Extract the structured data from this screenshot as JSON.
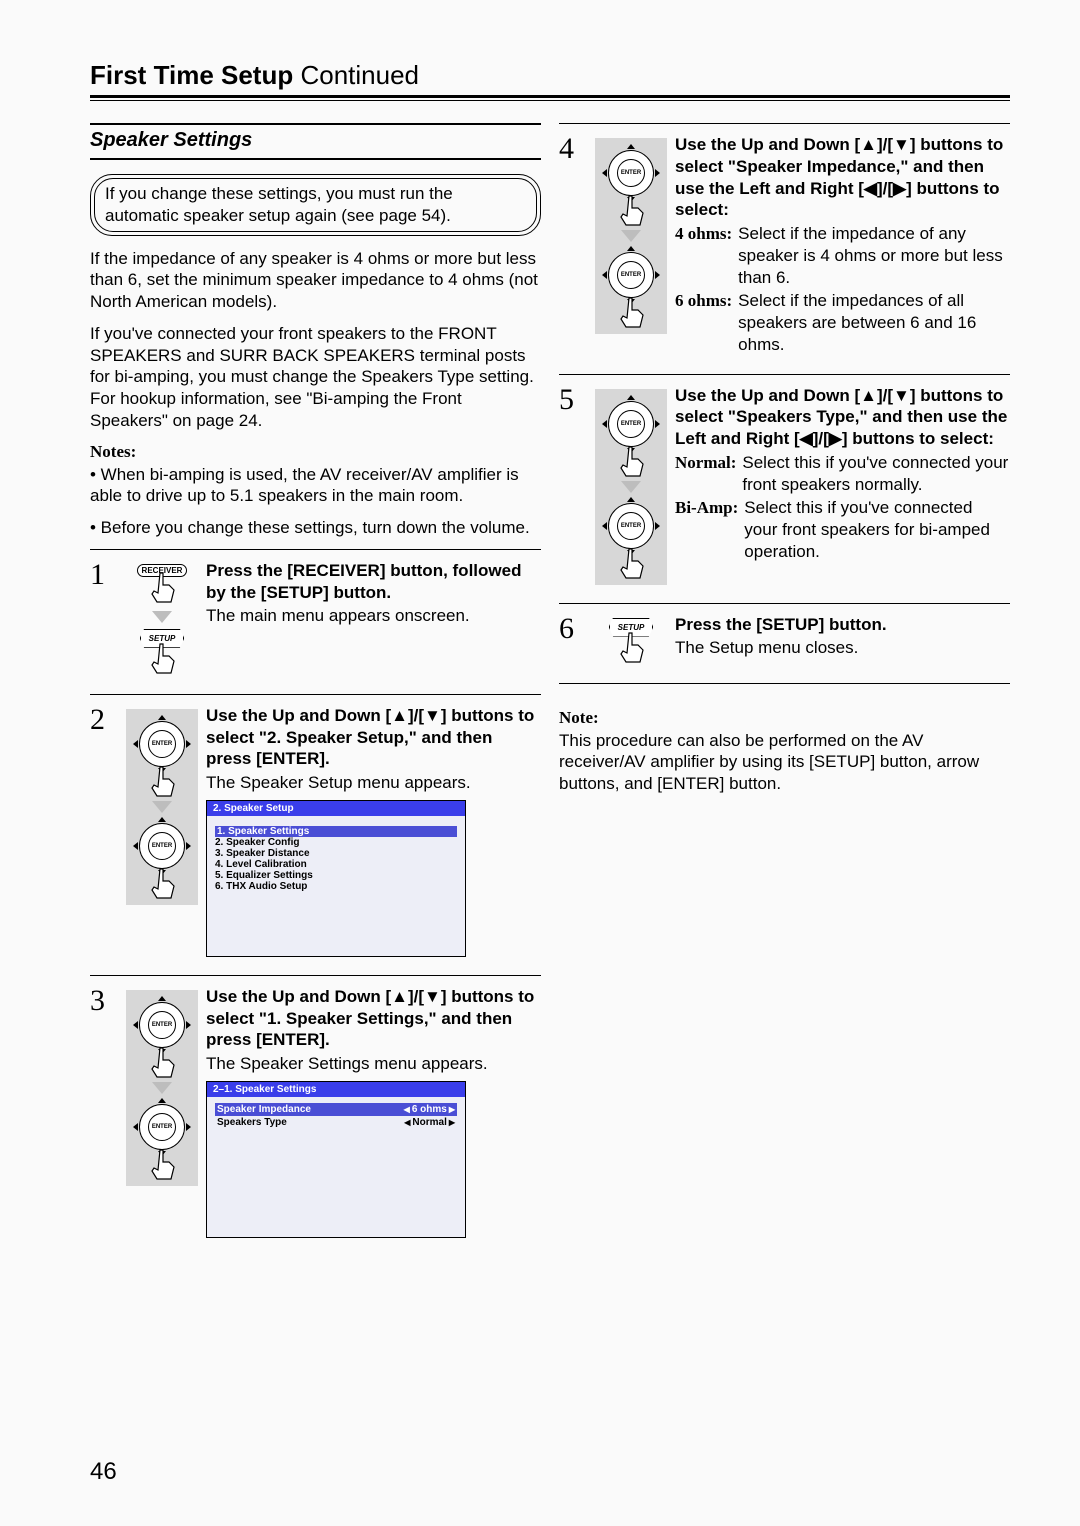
{
  "page": {
    "title_bold": "First Time Setup",
    "title_rest": " Continued",
    "page_number": "46",
    "section_heading": "Speaker Settings",
    "callout": "If you change these settings, you must run the automatic speaker setup again (see page 54).",
    "intro_p1": "If the impedance of any speaker is 4 ohms or more but less than 6, set the minimum speaker impedance to 4 ohms (not North American models).",
    "intro_p2": "If you've connected your front speakers to the FRONT SPEAKERS and SURR BACK SPEAKERS terminal posts for bi-amping, you must change the Speakers Type setting. For hookup information, see \"Bi-amping the Front Speakers\" on page 24.",
    "notes_heading": "Notes:",
    "notes_p1": "• When bi-amping is used, the AV receiver/AV amplifier is able to drive up to 5.1 speakers in the main room.",
    "notes_p2": "• Before you change these settings, turn down the volume.",
    "step1": {
      "num": "1",
      "receiver_label": "RECEIVER",
      "setup_label": "SETUP",
      "instr": "Press the [RECEIVER] button, followed by the [SETUP] button.",
      "result": "The main menu appears onscreen."
    },
    "step2": {
      "num": "2",
      "enter_label": "ENTER",
      "instr": "Use the Up and Down [▲]/[▼] buttons to select \"2. Speaker Setup,\" and then press [ENTER].",
      "result": "The Speaker Setup menu appears.",
      "lcd_title": "2. Speaker Setup",
      "lcd_items": [
        "Speaker Settings",
        "Speaker Config",
        "Speaker Distance",
        "Level Calibration",
        "Equalizer Settings",
        "THX Audio Setup"
      ]
    },
    "step3": {
      "num": "3",
      "enter_label": "ENTER",
      "instr": "Use the Up and Down [▲]/[▼] buttons to select \"1. Speaker Settings,\" and then press [ENTER].",
      "result": "The Speaker Settings menu appears.",
      "lcd_title": "2–1. Speaker Settings",
      "row1_k": "Speaker Impedance",
      "row1_v": "6 ohms",
      "row2_k": "Speakers Type",
      "row2_v": "Normal"
    },
    "step4": {
      "num": "4",
      "enter_label": "ENTER",
      "instr": "Use the Up and Down [▲]/[▼] buttons to select \"Speaker Impedance,\" and then use the Left and Right [◀]/[▶] buttons to select:",
      "opt1_term": "4 ohms:",
      "opt1_def": "Select if the impedance of any speaker is 4 ohms or more but less than 6.",
      "opt2_term": "6 ohms:",
      "opt2_def": "Select if the impedances of all speakers are between 6 and 16 ohms."
    },
    "step5": {
      "num": "5",
      "enter_label": "ENTER",
      "instr": "Use the Up and Down [▲]/[▼] buttons to select \"Speakers Type,\" and then use the Left and Right [◀]/[▶] buttons to select:",
      "opt1_term": "Normal:",
      "opt1_def": "Select this if you've connected your front speakers normally.",
      "opt2_term": "Bi-Amp:",
      "opt2_def": "Select this if you've connected your front speakers for bi-amped operation."
    },
    "step6": {
      "num": "6",
      "setup_label": "SETUP",
      "instr": "Press the [SETUP] button.",
      "result": "The Setup menu closes."
    },
    "bottom_note_heading": "Note:",
    "bottom_note": "This procedure can also be performed on the AV receiver/AV amplifier by using its [SETUP] button, arrow buttons, and [ENTER] button."
  },
  "colors": {
    "lcd_header_bg": "#3a3eea",
    "lcd_body_bg": "#edeef7",
    "lcd_highlight": "#4a4ed5",
    "grey": "#d7d7d7",
    "arrow_grey": "#bdbdbd"
  }
}
